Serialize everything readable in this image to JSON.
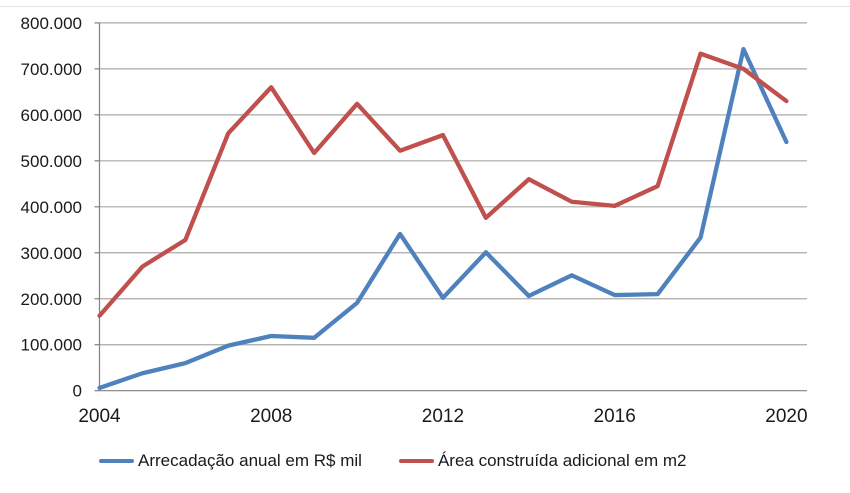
{
  "chart_data": {
    "type": "line",
    "title": "",
    "xlabel": "",
    "ylabel": "",
    "x": [
      2004,
      2005,
      2006,
      2007,
      2008,
      2009,
      2010,
      2011,
      2012,
      2013,
      2014,
      2015,
      2016,
      2017,
      2018,
      2019,
      2020
    ],
    "x_tick_years": [
      2004,
      2008,
      2012,
      2016,
      2020
    ],
    "x_tick_labels": [
      "2004",
      "2008",
      "2012",
      "2016",
      "2020"
    ],
    "y_ticks": [
      0,
      100000,
      200000,
      300000,
      400000,
      500000,
      600000,
      700000,
      800000
    ],
    "y_tick_labels": [
      "0",
      "100.000",
      "200.000",
      "300.000",
      "400.000",
      "500.000",
      "600.000",
      "700.000",
      "800.000"
    ],
    "ylim": [
      0,
      800000
    ],
    "grid": "horizontal",
    "legend_position": "bottom",
    "series": [
      {
        "name": "Arrecadação anual em R$ mil",
        "color": "#4F81BD",
        "values": [
          6000,
          38000,
          60000,
          98000,
          119000,
          115000,
          191000,
          341000,
          202000,
          301000,
          206000,
          251000,
          208000,
          210000,
          333000,
          743000,
          541000
        ]
      },
      {
        "name": "Área construída adicional em m2",
        "color": "#C0504D",
        "values": [
          163000,
          270000,
          328000,
          560000,
          660000,
          517000,
          624000,
          522000,
          556000,
          376000,
          460000,
          411000,
          402000,
          445000,
          733000,
          700000,
          630000
        ]
      }
    ],
    "grid_color": "#A9A9A9",
    "axis_color": "#808080",
    "border_color": "#E3E3E3",
    "text_color": "#1a1a1a"
  }
}
